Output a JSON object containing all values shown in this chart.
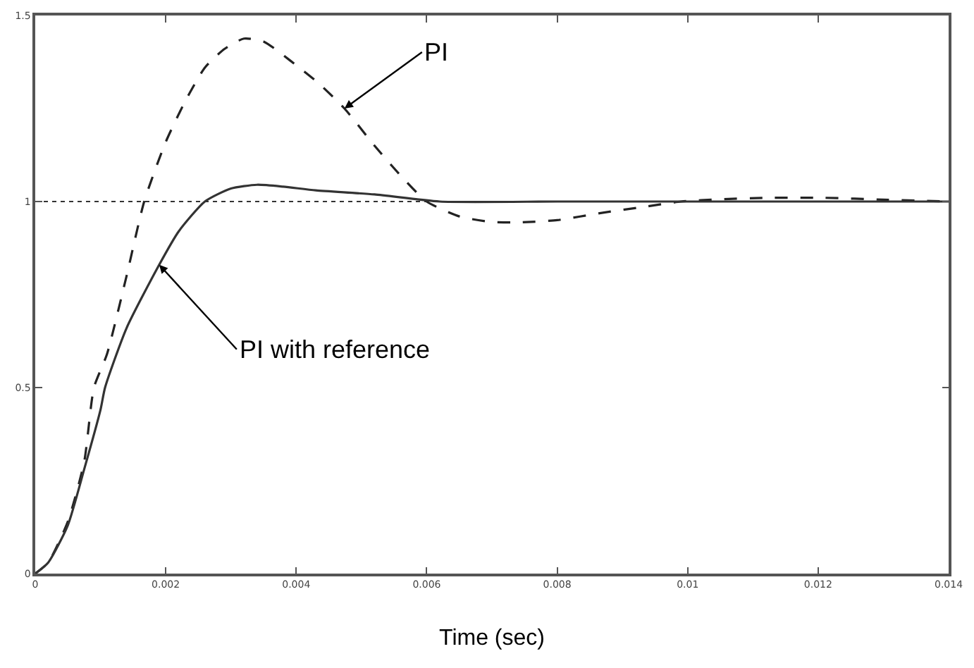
{
  "chart_data": {
    "type": "line",
    "xlabel": "Time (sec)",
    "series": [
      {
        "color": "#222222",
        "line_style": "dashed",
        "x": [
          0,
          0.0002,
          0.0005,
          0.00075,
          0.0009,
          0.0011,
          0.0014,
          0.00167,
          0.002,
          0.0023,
          0.0026,
          0.0029,
          0.0032,
          0.0035,
          0.0039,
          0.00433,
          0.00474,
          0.0052,
          0.0056,
          0.006,
          0.0065,
          0.007,
          0.00743,
          0.008,
          0.0087,
          0.0093,
          0.0099,
          0.0105,
          0.0112,
          0.0121,
          0.013,
          0.014
        ],
        "values": [
          0,
          0.03,
          0.14,
          0.3,
          0.5,
          0.59,
          0.8,
          1.0,
          1.16,
          1.27,
          1.36,
          1.41,
          1.438,
          1.43,
          1.38,
          1.32,
          1.25,
          1.15,
          1.07,
          1.0,
          0.96,
          0.945,
          0.944,
          0.95,
          0.97,
          0.985,
          1.0,
          1.006,
          1.01,
          1.01,
          1.005,
          1.0
        ]
      },
      {
        "color": "#333333",
        "line_style": "solid",
        "x": [
          0,
          0.0002,
          0.0005,
          0.00075,
          0.001,
          0.00107,
          0.0014,
          0.0019,
          0.0022,
          0.0026,
          0.003,
          0.0034,
          0.0038,
          0.0043,
          0.0052,
          0.0062,
          0.008,
          0.01,
          0.012,
          0.014
        ],
        "values": [
          0,
          0.03,
          0.13,
          0.28,
          0.44,
          0.5,
          0.66,
          0.83,
          0.92,
          1.0,
          1.035,
          1.045,
          1.04,
          1.03,
          1.019,
          1.0,
          1.0,
          1.0,
          1.0,
          1.0
        ]
      }
    ],
    "xlim": [
      0,
      0.014
    ],
    "xticks": [
      0,
      0.002,
      0.004,
      0.006,
      0.008,
      0.01,
      0.012,
      0.014
    ],
    "ylim": [
      0,
      1.5
    ],
    "yticks": [
      0,
      0.5,
      1,
      1.5
    ],
    "ref_lines": [
      {
        "axis": "y",
        "value": 1,
        "color": "#333333",
        "line_style": "dotted"
      }
    ],
    "annotations": [
      {
        "text": "PI",
        "x": 0.00474,
        "y": 1.25
      },
      {
        "text": "PI with reference",
        "x": 0.0019,
        "y": 0.83
      }
    ]
  }
}
